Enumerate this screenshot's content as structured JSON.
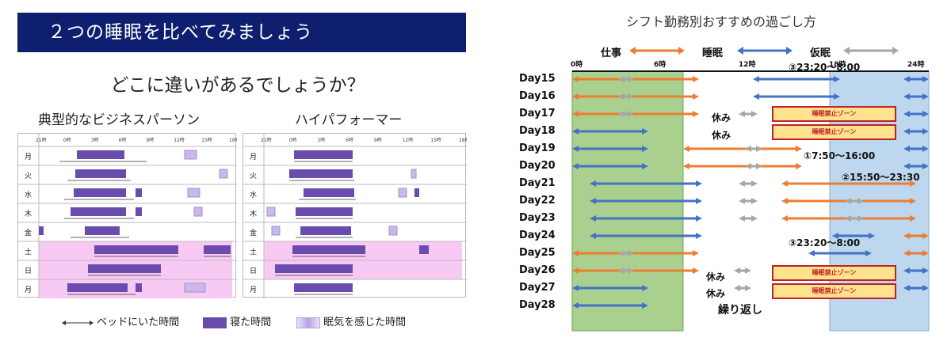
{
  "left": {
    "title": "２つの睡眠を比べてみましょう",
    "question": "どこに違いがあるでしょうか？",
    "typical": {
      "subtitle": "典型的なビジネスパーソン",
      "hours": [
        "21時",
        "0時",
        "3時",
        "6時",
        "9時",
        "12時",
        "15時",
        "18時"
      ],
      "days": [
        "月",
        "火",
        "水",
        "木",
        "金",
        "土",
        "日",
        "月"
      ]
    },
    "performer": {
      "subtitle": "ハイパフォーマー",
      "hours": [
        "21時",
        "0時",
        "3時",
        "6時",
        "9時",
        "12時",
        "15時",
        "18時"
      ],
      "days": [
        "月",
        "火",
        "水",
        "木",
        "金",
        "土",
        "日",
        "月"
      ]
    },
    "legend": {
      "bed": "ベッドにいた時間",
      "sleep": "寝た時間",
      "drowsy": "眠気を感じた時間"
    },
    "colors": {
      "sleep": "#6a4caf",
      "drowsy": "#c9b8e8",
      "weekend": "#f7c9f3",
      "title_bg": "#0d1f6e"
    }
  },
  "right": {
    "title": "シフト勤務別おすすめの過ごし方",
    "legend": {
      "work": "仕事",
      "sleep": "睡眠",
      "nap": "仮眠"
    },
    "hours": [
      "0時",
      "6時",
      "12時",
      "18時",
      "24時"
    ],
    "days": [
      "Day15",
      "Day16",
      "Day17",
      "Day18",
      "Day19",
      "Day20",
      "Day21",
      "Day22",
      "Day23",
      "Day24",
      "Day25",
      "Day26",
      "Day27",
      "Day28"
    ],
    "rest": "休み",
    "zone": "睡眠禁止ゾーン",
    "notes": {
      "shift1": "①7:50～16:00",
      "shift2": "②15:50～23:30",
      "shift3a": "③23:20～8:00",
      "shift3b": "③23:20～8:00",
      "repeat": "繰り返し"
    },
    "colors": {
      "work": "#ed7d31",
      "sleep": "#4472c4",
      "nap": "#a6a6a6",
      "green": "#a9d08e",
      "blue": "#bdd7ee"
    }
  }
}
